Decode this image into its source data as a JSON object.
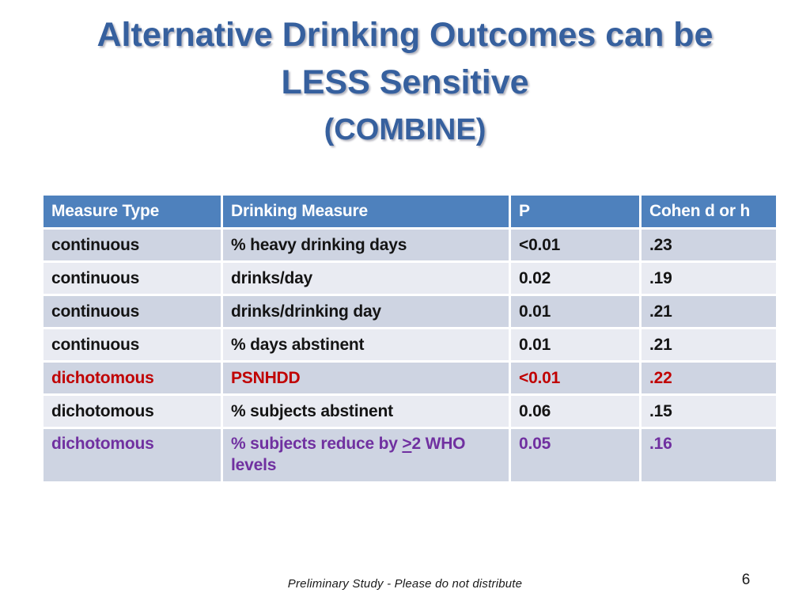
{
  "slide": {
    "title_lines": [
      "Alternative Drinking Outcomes can be",
      "LESS Sensitive",
      "(COMBINE)"
    ],
    "footer": "Preliminary Study - Please do not distribute",
    "page_number": "6"
  },
  "colors": {
    "title_blue": "#36609E",
    "header_bg": "#4E81BD",
    "header_text": "#FFFFFF",
    "row_dark": "#CED4E2",
    "row_light": "#E9EBF2",
    "emphasis_red": "#C00000",
    "emphasis_purple": "#7030A0",
    "body_text": "#141414"
  },
  "table": {
    "headers": [
      "Measure Type",
      "Drinking Measure",
      "P",
      "Cohen d or h"
    ],
    "rows": [
      {
        "measure_type": "continuous",
        "drinking_measure": "% heavy drinking days",
        "p": "<0.01",
        "cohen": ".23"
      },
      {
        "measure_type": "continuous",
        "drinking_measure": "drinks/day",
        "p": "0.02",
        "cohen": ".19"
      },
      {
        "measure_type": "continuous",
        "drinking_measure": "drinks/drinking day",
        "p": "0.01",
        "cohen": ".21"
      },
      {
        "measure_type": "continuous",
        "drinking_measure": "% days abstinent",
        "p": "0.01",
        "cohen": ".21"
      },
      {
        "measure_type": "dichotomous",
        "drinking_measure": "PSNHDD",
        "p": "<0.01",
        "cohen": ".22"
      },
      {
        "measure_type": "dichotomous",
        "drinking_measure": "% subjects abstinent",
        "p": "0.06",
        "cohen": ".15"
      },
      {
        "measure_type": "dichotomous",
        "drinking_measure_parts": {
          "prefix": "% subjects reduce by ",
          "underlined": ">",
          "suffix": "2 WHO levels"
        },
        "p": "0.05",
        "cohen": ".16"
      }
    ]
  }
}
